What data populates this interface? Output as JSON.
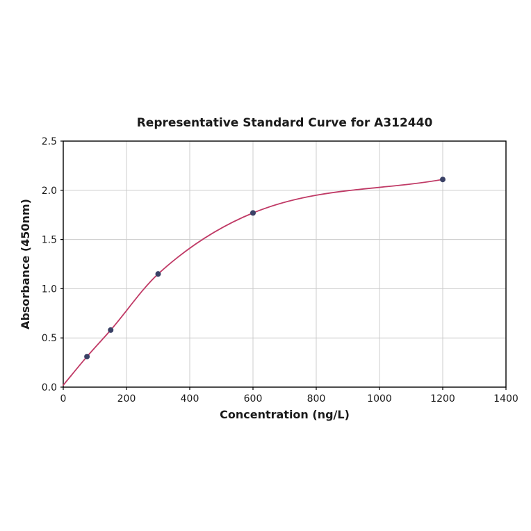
{
  "chart_data": {
    "type": "scatter",
    "title": "Representative Standard Curve for A312440",
    "xlabel": "Concentration (ng/L)",
    "ylabel": "Absorbance (450nm)",
    "xlim": [
      0,
      1400
    ],
    "ylim": [
      0,
      2.5
    ],
    "x_ticks": [
      0,
      200,
      400,
      600,
      800,
      1000,
      1200,
      1400
    ],
    "x_tick_labels": [
      "0",
      "200",
      "400",
      "600",
      "800",
      "1000",
      "1200",
      "1400"
    ],
    "y_ticks": [
      0,
      0.5,
      1.0,
      1.5,
      2.0,
      2.5
    ],
    "y_tick_labels": [
      "0.0",
      "0.5",
      "1.0",
      "1.5",
      "2.0",
      "2.5"
    ],
    "grid": true,
    "legend": "none",
    "series": [
      {
        "name": "standard-points",
        "x": [
          75,
          150,
          300,
          600,
          1200
        ],
        "y": [
          0.31,
          0.58,
          1.15,
          1.77,
          2.11
        ]
      }
    ],
    "curve_start": {
      "x": 0,
      "y": 0.02
    },
    "colors": {
      "curve": "#c03a66",
      "points": "#3a4166",
      "grid": "#cccccc",
      "axis": "#000000",
      "text": "#1a1a1a"
    }
  }
}
